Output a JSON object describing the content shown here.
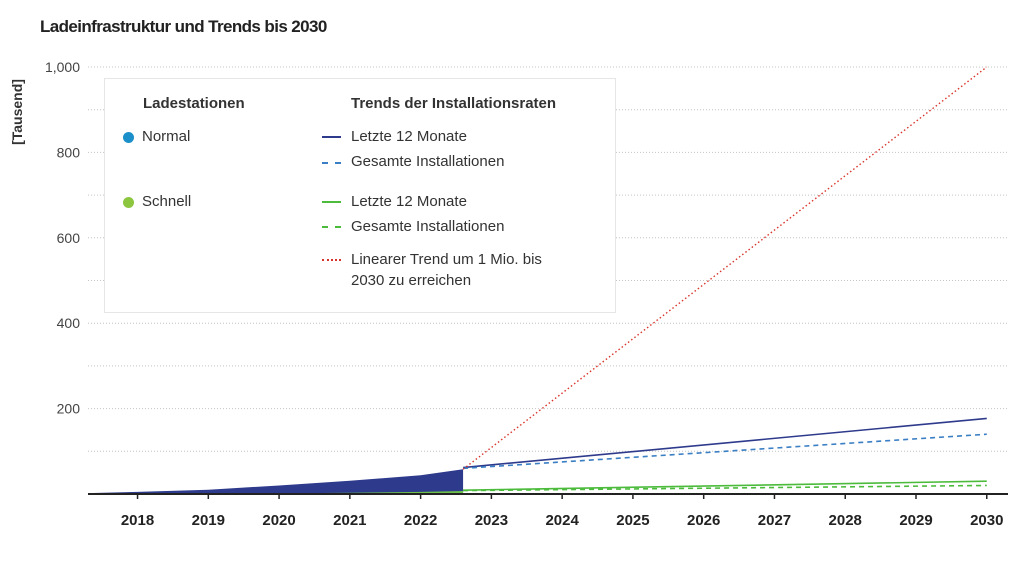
{
  "chart_data": {
    "type": "area",
    "title": "Ladeinfrastruktur und Trends bis 2030",
    "ylabel": "[Tausend]",
    "xlim": [
      2017.3,
      2030.3
    ],
    "ylim": [
      0,
      1000
    ],
    "x_ticks": [
      "2018",
      "2019",
      "2020",
      "2021",
      "2022",
      "2023",
      "2024",
      "2025",
      "2026",
      "2027",
      "2028",
      "2029",
      "2030"
    ],
    "y_ticks": [
      200,
      400,
      600,
      800,
      1000
    ],
    "y_tick_labels": [
      "200",
      "400",
      "600",
      "800",
      "1,000"
    ],
    "grid": true,
    "legend_position": "top-left",
    "series": [
      {
        "key": "normal",
        "kind": "area",
        "color": "#2e3a8c",
        "x": [
          2017.3,
          2018,
          2019,
          2020,
          2021,
          2022,
          2022.6
        ],
        "y": [
          2,
          5,
          10,
          20,
          31,
          44,
          58
        ]
      },
      {
        "key": "schnell",
        "kind": "area",
        "color": "#6cc04a",
        "x": [
          2017.3,
          2018,
          2019,
          2020,
          2021,
          2022,
          2022.6
        ],
        "y": [
          0,
          0.3,
          0.8,
          1.5,
          3,
          5,
          7
        ]
      },
      {
        "key": "normal_12m",
        "kind": "line",
        "color": "#2e3a8c",
        "dash": "solid",
        "x": [
          2022.6,
          2030
        ],
        "y": [
          62,
          177
        ]
      },
      {
        "key": "normal_total",
        "kind": "line",
        "color": "#3a7ec4",
        "dash": "dashed",
        "x": [
          2022.6,
          2030
        ],
        "y": [
          60,
          140
        ]
      },
      {
        "key": "schnell_12m",
        "kind": "line",
        "color": "#4cbb3c",
        "dash": "solid",
        "x": [
          2022.6,
          2030
        ],
        "y": [
          9,
          30
        ]
      },
      {
        "key": "schnell_total",
        "kind": "line",
        "color": "#4cbb3c",
        "dash": "dashed",
        "x": [
          2022.6,
          2030
        ],
        "y": [
          8,
          20
        ]
      },
      {
        "key": "linear_trend",
        "kind": "line",
        "color": "#d9342b",
        "dash": "dotted",
        "x": [
          2022.6,
          2030
        ],
        "y": [
          58,
          1000
        ]
      }
    ],
    "legend": {
      "group1_title": "Ladestationen",
      "group2_title": "Trends der Installationsraten",
      "normal_label": "Normal",
      "schnell_label": "Schnell",
      "normal_12m_label": "Letzte 12 Monate",
      "normal_total_label": "Gesamte Installationen",
      "schnell_12m_label": "Letzte 12 Monate",
      "schnell_total_label": "Gesamte Installationen",
      "linear_label_line1": "Linearer Trend um 1 Mio. bis",
      "linear_label_line2": "2030 zu erreichen"
    },
    "colors": {
      "normal_dot": "#1a8fc9",
      "schnell_dot": "#8cc63f"
    }
  }
}
